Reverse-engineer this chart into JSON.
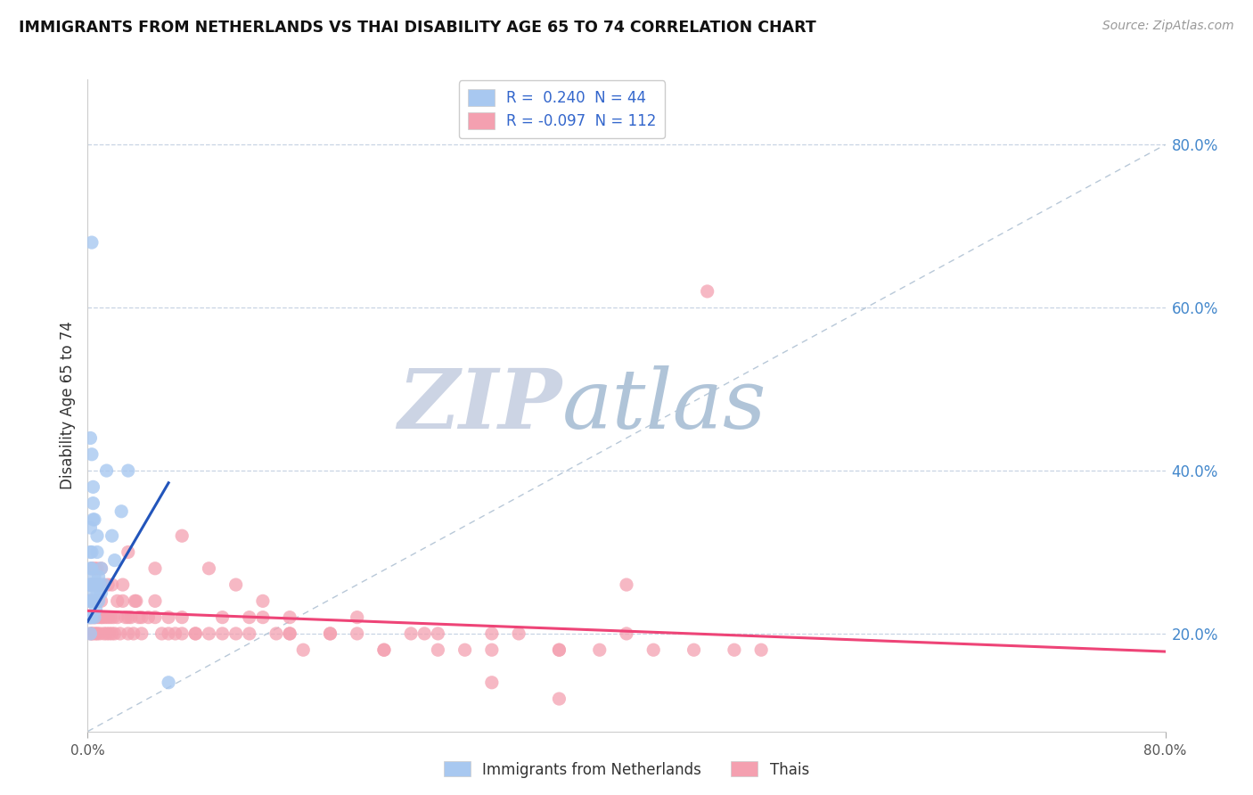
{
  "title": "IMMIGRANTS FROM NETHERLANDS VS THAI DISABILITY AGE 65 TO 74 CORRELATION CHART",
  "source": "Source: ZipAtlas.com",
  "ylabel": "Disability Age 65 to 74",
  "xlim": [
    0.0,
    0.8
  ],
  "ylim": [
    0.08,
    0.88
  ],
  "yticks_right": [
    0.2,
    0.4,
    0.6,
    0.8
  ],
  "ytick_labels_right": [
    "20.0%",
    "40.0%",
    "60.0%",
    "80.0%"
  ],
  "netherlands_R": 0.24,
  "netherlands_N": 44,
  "thai_R": -0.097,
  "thai_N": 112,
  "netherlands_color": "#a8c8f0",
  "thai_color": "#f4a0b0",
  "netherlands_trend_color": "#2255bb",
  "thai_trend_color": "#ee4477",
  "diagonal_color": "#b8c8d8",
  "watermark_main_color": "#c8d4e4",
  "watermark_sub_color": "#a8bcd4",
  "legend_label_netherlands": "Immigrants from Netherlands",
  "legend_label_thais": "Thais",
  "background_color": "#ffffff",
  "grid_color": "#c8d4e4",
  "nl_x": [
    0.001,
    0.001,
    0.001,
    0.002,
    0.002,
    0.002,
    0.002,
    0.002,
    0.002,
    0.003,
    0.003,
    0.003,
    0.003,
    0.003,
    0.004,
    0.004,
    0.004,
    0.005,
    0.005,
    0.005,
    0.006,
    0.006,
    0.007,
    0.007,
    0.008,
    0.008,
    0.009,
    0.01,
    0.01,
    0.012,
    0.014,
    0.018,
    0.02,
    0.025,
    0.03,
    0.002,
    0.003,
    0.004,
    0.005,
    0.007,
    0.003,
    0.004,
    0.06,
    0.002
  ],
  "nl_y": [
    0.22,
    0.24,
    0.26,
    0.2,
    0.22,
    0.24,
    0.26,
    0.28,
    0.3,
    0.22,
    0.24,
    0.26,
    0.28,
    0.3,
    0.24,
    0.26,
    0.36,
    0.22,
    0.25,
    0.27,
    0.23,
    0.26,
    0.25,
    0.3,
    0.24,
    0.27,
    0.26,
    0.25,
    0.28,
    0.26,
    0.4,
    0.32,
    0.29,
    0.35,
    0.4,
    0.44,
    0.42,
    0.38,
    0.34,
    0.32,
    0.68,
    0.34,
    0.14,
    0.33
  ],
  "th_x": [
    0.001,
    0.001,
    0.002,
    0.002,
    0.002,
    0.003,
    0.003,
    0.003,
    0.004,
    0.004,
    0.005,
    0.005,
    0.006,
    0.006,
    0.007,
    0.007,
    0.008,
    0.009,
    0.01,
    0.01,
    0.011,
    0.012,
    0.013,
    0.014,
    0.015,
    0.016,
    0.017,
    0.018,
    0.019,
    0.02,
    0.022,
    0.024,
    0.026,
    0.028,
    0.03,
    0.032,
    0.034,
    0.036,
    0.038,
    0.04,
    0.045,
    0.05,
    0.055,
    0.06,
    0.065,
    0.07,
    0.08,
    0.09,
    0.1,
    0.11,
    0.12,
    0.13,
    0.14,
    0.15,
    0.16,
    0.18,
    0.2,
    0.22,
    0.24,
    0.26,
    0.28,
    0.3,
    0.32,
    0.35,
    0.38,
    0.4,
    0.42,
    0.45,
    0.48,
    0.5,
    0.002,
    0.003,
    0.004,
    0.005,
    0.006,
    0.007,
    0.008,
    0.009,
    0.01,
    0.012,
    0.015,
    0.018,
    0.022,
    0.026,
    0.03,
    0.035,
    0.04,
    0.05,
    0.06,
    0.07,
    0.08,
    0.1,
    0.12,
    0.15,
    0.18,
    0.22,
    0.26,
    0.3,
    0.35,
    0.03,
    0.05,
    0.07,
    0.09,
    0.11,
    0.13,
    0.15,
    0.2,
    0.25,
    0.3,
    0.35,
    0.4,
    0.46
  ],
  "th_y": [
    0.22,
    0.24,
    0.2,
    0.22,
    0.24,
    0.2,
    0.22,
    0.24,
    0.2,
    0.22,
    0.22,
    0.24,
    0.2,
    0.22,
    0.2,
    0.24,
    0.22,
    0.2,
    0.22,
    0.24,
    0.22,
    0.2,
    0.22,
    0.2,
    0.22,
    0.2,
    0.22,
    0.2,
    0.22,
    0.2,
    0.22,
    0.2,
    0.24,
    0.22,
    0.2,
    0.22,
    0.2,
    0.24,
    0.22,
    0.2,
    0.22,
    0.24,
    0.2,
    0.22,
    0.2,
    0.2,
    0.2,
    0.2,
    0.22,
    0.2,
    0.2,
    0.22,
    0.2,
    0.2,
    0.18,
    0.2,
    0.2,
    0.18,
    0.2,
    0.2,
    0.18,
    0.2,
    0.2,
    0.18,
    0.18,
    0.2,
    0.18,
    0.18,
    0.18,
    0.18,
    0.26,
    0.28,
    0.26,
    0.28,
    0.26,
    0.28,
    0.26,
    0.26,
    0.28,
    0.26,
    0.26,
    0.26,
    0.24,
    0.26,
    0.22,
    0.24,
    0.22,
    0.22,
    0.2,
    0.22,
    0.2,
    0.2,
    0.22,
    0.2,
    0.2,
    0.18,
    0.18,
    0.18,
    0.18,
    0.3,
    0.28,
    0.32,
    0.28,
    0.26,
    0.24,
    0.22,
    0.22,
    0.2,
    0.14,
    0.12,
    0.26,
    0.62
  ]
}
